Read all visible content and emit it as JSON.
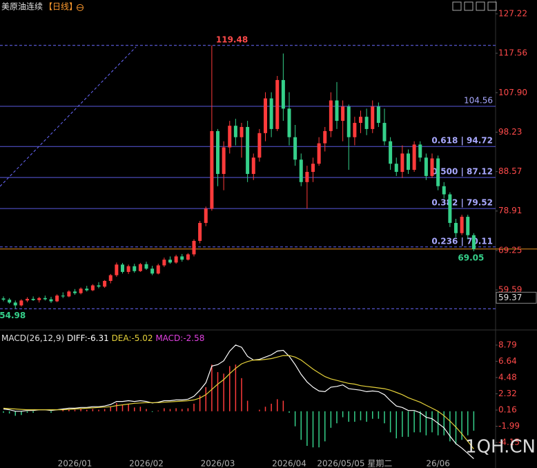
{
  "chart_data": {
    "type": "candlestick",
    "title": "美原油连续",
    "period": "【日线】",
    "watermark": "1QH.CN",
    "up_color": "#ff3b3b",
    "down_color": "#35d08a",
    "categories": [
      null,
      null,
      null,
      null,
      null,
      null,
      null,
      null,
      null,
      null,
      null,
      null,
      "2026/01",
      null,
      null,
      null,
      null,
      null,
      null,
      null,
      null,
      null,
      null,
      null,
      "2026/02",
      null,
      null,
      null,
      null,
      null,
      null,
      null,
      null,
      null,
      null,
      null,
      "2026/03",
      null,
      null,
      null,
      null,
      null,
      null,
      null,
      null,
      null,
      null,
      null,
      "2026/04",
      null,
      null,
      null,
      null,
      null,
      null,
      null,
      null,
      null,
      null,
      "2026/05/05 星期二",
      null,
      null,
      null,
      null,
      null,
      null,
      null,
      null,
      null,
      null,
      null,
      null,
      null,
      "26/06",
      null,
      null,
      null,
      null,
      null,
      null
    ],
    "candles": [
      [
        57.5,
        58,
        56.8,
        57.2
      ],
      [
        57.2,
        57.6,
        56.2,
        56.5
      ],
      [
        56.5,
        57,
        54.98,
        55.8
      ],
      [
        55.8,
        57.3,
        55.5,
        57
      ],
      [
        57,
        57.8,
        56.6,
        57.4
      ],
      [
        57.4,
        58,
        56.9,
        57.1
      ],
      [
        57.1,
        57.9,
        56.5,
        57.6
      ],
      [
        57.6,
        58.2,
        57,
        57.3
      ],
      [
        57.3,
        57.9,
        56.4,
        56.8
      ],
      [
        56.8,
        58.5,
        56.6,
        58.2
      ],
      [
        58.2,
        59,
        57.6,
        58
      ],
      [
        58,
        59.5,
        57.8,
        59.2
      ],
      [
        59.2,
        59.8,
        58.4,
        58.8
      ],
      [
        58.8,
        60.2,
        58.5,
        59.9
      ],
      [
        59.9,
        60.6,
        59.2,
        59.5
      ],
      [
        59.5,
        61,
        59.3,
        60.7
      ],
      [
        60.7,
        61.5,
        60,
        60.4
      ],
      [
        60.4,
        62,
        60.1,
        61.8
      ],
      [
        61.8,
        63.5,
        61.2,
        63.2
      ],
      [
        63.2,
        66.3,
        62.8,
        65.8
      ],
      [
        65.8,
        66.2,
        63.6,
        64
      ],
      [
        64,
        65.8,
        63.5,
        65.4
      ],
      [
        65.4,
        66,
        63.8,
        64.2
      ],
      [
        64.2,
        66.2,
        64,
        65.9
      ],
      [
        65.9,
        66.5,
        64.5,
        64.8
      ],
      [
        64.8,
        65.5,
        63.2,
        63.6
      ],
      [
        63.6,
        66,
        63.4,
        65.6
      ],
      [
        65.6,
        67.5,
        65.2,
        67
      ],
      [
        67,
        67.8,
        66,
        66.3
      ],
      [
        66.3,
        68.2,
        66,
        67.8
      ],
      [
        67.8,
        68.4,
        66.5,
        67
      ],
      [
        67,
        68.6,
        66.8,
        68.3
      ],
      [
        68.3,
        72,
        67.8,
        71.6
      ],
      [
        71.6,
        76.5,
        71,
        76
      ],
      [
        76,
        80,
        75.2,
        79.5
      ],
      [
        79.5,
        119.48,
        79,
        98.5
      ],
      [
        98.5,
        99,
        85,
        88
      ],
      [
        88,
        96,
        84,
        94.5
      ],
      [
        94.5,
        101,
        93,
        99.8
      ],
      [
        99.8,
        101.5,
        95,
        97
      ],
      [
        97,
        100.5,
        92,
        99.5
      ],
      [
        99.5,
        101,
        86,
        88
      ],
      [
        88,
        93,
        86.5,
        92
      ],
      [
        92,
        99,
        91,
        98
      ],
      [
        98,
        108,
        96,
        106.5
      ],
      [
        106.5,
        108,
        97,
        99
      ],
      [
        99,
        112,
        98.5,
        111
      ],
      [
        111,
        117.5,
        101,
        104
      ],
      [
        104,
        108,
        95,
        97
      ],
      [
        97,
        100,
        90,
        91.5
      ],
      [
        91.5,
        93,
        85,
        86
      ],
      [
        86,
        90,
        79.5,
        88.5
      ],
      [
        88.5,
        92,
        86,
        90.5
      ],
      [
        90.5,
        97,
        90,
        95.5
      ],
      [
        95.5,
        99.5,
        93.5,
        98.5
      ],
      [
        98.5,
        108,
        97,
        106
      ],
      [
        106,
        110.5,
        99,
        101
      ],
      [
        101,
        106,
        96,
        104.5
      ],
      [
        104.5,
        105,
        89,
        97
      ],
      [
        97,
        102,
        95,
        100.5
      ],
      [
        100.5,
        103.5,
        98,
        102
      ],
      [
        102,
        104,
        97.5,
        99
      ],
      [
        99,
        106,
        98,
        104.5
      ],
      [
        104.5,
        105.5,
        99.5,
        100.5
      ],
      [
        100.5,
        104,
        95,
        96
      ],
      [
        96,
        97,
        89,
        90.5
      ],
      [
        90.5,
        92,
        87.5,
        88.5
      ],
      [
        88.5,
        95,
        87,
        93
      ],
      [
        93,
        94,
        88,
        89
      ],
      [
        89,
        96,
        88.5,
        95.2
      ],
      [
        95.2,
        96,
        91,
        92
      ],
      [
        92,
        93,
        86.5,
        87.5
      ],
      [
        87.5,
        93,
        87,
        91.8
      ],
      [
        91.8,
        92.5,
        84,
        85
      ],
      [
        85,
        86,
        82,
        83
      ],
      [
        83,
        83.5,
        75,
        76
      ],
      [
        76,
        77,
        72.5,
        73.5
      ],
      [
        73.5,
        78,
        73,
        77.5
      ],
      [
        77.5,
        78,
        72,
        73
      ],
      [
        73,
        73.5,
        69.05,
        69.6
      ]
    ],
    "ylim": [
      51.14,
      130.6
    ],
    "yticks": [
      127.22,
      117.56,
      {
        "value": 107.9,
        "label": "107.90"
      },
      98.23,
      88.57,
      78.91,
      69.25,
      59.59
    ],
    "levels": [
      {
        "value": 119.48,
        "style": "dashed",
        "color": "#6a6aff"
      },
      {
        "value": 104.56,
        "style": "solid",
        "color": "#5a5adf",
        "labeled": true
      },
      {
        "value": 94.72,
        "style": "solid",
        "color": "#5a5adf",
        "label": "0.618 | 94.72"
      },
      {
        "value": 87.12,
        "style": "solid",
        "color": "#5a5adf",
        "label": "0.500 | 87.12"
      },
      {
        "value": 79.52,
        "style": "solid",
        "color": "#5a5adf",
        "label": "0.382 | 79.52"
      },
      {
        "value": 70.11,
        "style": "dashed",
        "color": "#6a6aff",
        "label": "0.236 | 70.11"
      },
      {
        "value": 54.98,
        "style": "dashed",
        "color": "#6a6aff"
      }
    ],
    "annotations": [
      {
        "value": 119.48,
        "color": "#ff4a4a"
      },
      {
        "value": 54.98,
        "color": "#35d08a"
      },
      {
        "value": 69.05,
        "color": "#35d08a"
      }
    ],
    "cursor_value": 59.37,
    "macd": {
      "title": "MACD(26,12,9)",
      "diff_label": "DIFF:",
      "dea_label": "DEA:",
      "hist_label": "MACD:",
      "diff_color": "#ffffff",
      "dea_color": "#e6d23a",
      "hist_color": "#e040e0",
      "ylim": [
        -7.54,
        10.62
      ],
      "yticks": [
        8.79,
        6.64,
        4.48,
        2.32,
        0.16,
        -1.99,
        -4.15
      ],
      "diff": [
        0.3,
        0.2,
        0,
        0,
        0.1,
        0.1,
        0.2,
        0.2,
        0.1,
        0.2,
        0.3,
        0.4,
        0.4,
        0.5,
        0.5,
        0.6,
        0.6,
        0.7,
        0.9,
        1.3,
        1.3,
        1.4,
        1.3,
        1.4,
        1.3,
        1.1,
        1.2,
        1.4,
        1.4,
        1.5,
        1.5,
        1.6,
        2,
        2.8,
        3.8,
        6,
        6.2,
        6.7,
        8,
        8.8,
        8.5,
        7.3,
        6.8,
        6.9,
        7.2,
        7.5,
        8,
        8.1,
        7.3,
        6.2,
        4.9,
        3.9,
        3.2,
        2.7,
        2.6,
        3.2,
        3.3,
        3.5,
        3,
        2.9,
        2.8,
        2.6,
        2.7,
        2.6,
        2.2,
        1.4,
        0.7,
        0.5,
        0.1,
        0.1,
        -0.2,
        -0.8,
        -1,
        -1.6,
        -2.2,
        -3.3,
        -4.3,
        -4.9,
        -5.6,
        -6.31
      ],
      "dea": [
        0.4,
        0.35,
        0.3,
        0.25,
        0.2,
        0.2,
        0.2,
        0.2,
        0.2,
        0.2,
        0.2,
        0.25,
        0.3,
        0.35,
        0.4,
        0.45,
        0.5,
        0.55,
        0.6,
        0.75,
        0.85,
        0.95,
        1.05,
        1.1,
        1.15,
        1.15,
        1.15,
        1.2,
        1.25,
        1.3,
        1.35,
        1.4,
        1.5,
        1.75,
        2.2,
        2.9,
        3.6,
        4.2,
        5,
        5.7,
        6.3,
        6.6,
        6.8,
        6.8,
        6.9,
        7,
        7.2,
        7.4,
        7.4,
        7.2,
        6.8,
        6.2,
        5.6,
        5.1,
        4.6,
        4.3,
        4.1,
        3.9,
        3.7,
        3.6,
        3.4,
        3.3,
        3.2,
        3.1,
        3,
        2.8,
        2.5,
        2.2,
        1.8,
        1.5,
        1.2,
        0.8,
        0.4,
        0,
        -0.6,
        -1.3,
        -2.1,
        -3,
        -4,
        -5.02
      ],
      "hist": [
        -0.2,
        -0.3,
        -0.6,
        -0.5,
        -0.2,
        -0.2,
        0,
        0,
        -0.2,
        0,
        0.2,
        0.3,
        0.2,
        0.3,
        0.2,
        0.3,
        0.2,
        0.3,
        0.6,
        1.1,
        0.9,
        0.9,
        0.5,
        0.6,
        0.3,
        -0.1,
        0.1,
        0.4,
        0.3,
        0.4,
        0.3,
        0.4,
        1,
        2.1,
        3.2,
        6.2,
        5.2,
        5,
        6,
        6.2,
        4.4,
        1.4,
        0,
        0.2,
        0.6,
        1,
        1.6,
        1.4,
        -0.2,
        -2,
        -3.8,
        -4.6,
        -4.8,
        -4.8,
        -4,
        -2.2,
        -1.6,
        -0.8,
        -1.4,
        -1.4,
        -1.2,
        -1.4,
        -1,
        -1,
        -1.6,
        -2.8,
        -3.6,
        -3.4,
        -3.4,
        -2.8,
        -2.8,
        -3.2,
        -2.8,
        -3.2,
        -3.2,
        -4,
        -4.4,
        -3.8,
        -3.2,
        -2.58
      ]
    }
  }
}
